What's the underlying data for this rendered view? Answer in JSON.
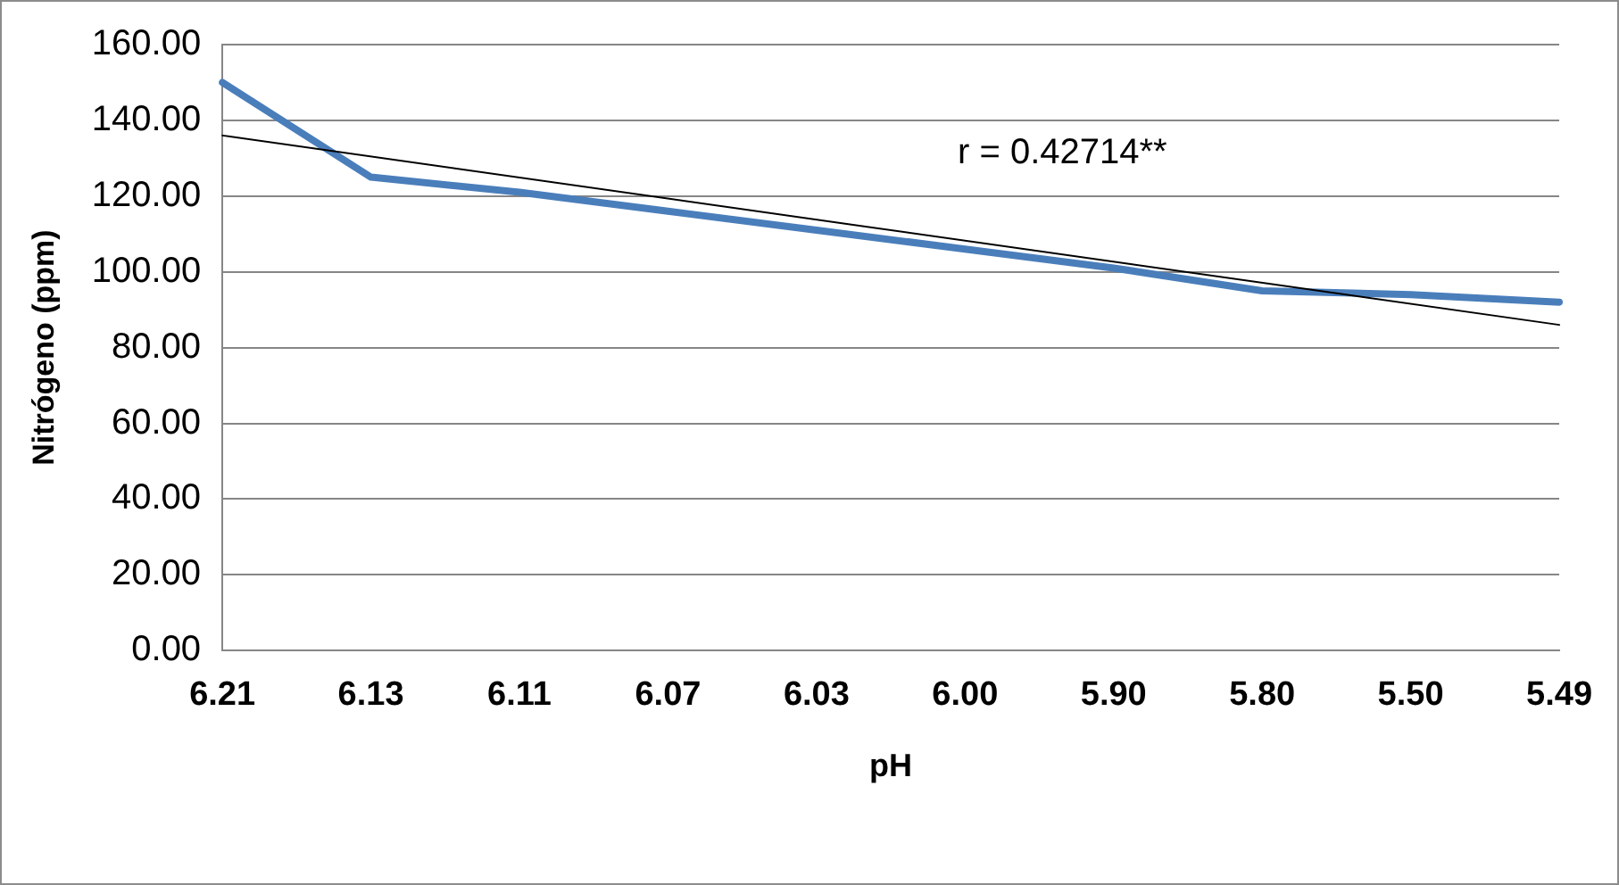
{
  "chart_data": {
    "type": "line",
    "xlabel": "pH",
    "ylabel": "Nitrógeno (ppm)",
    "categories": [
      "6.21",
      "6.13",
      "6.11",
      "6.07",
      "6.03",
      "6.00",
      "5.90",
      "5.80",
      "5.50",
      "5.49"
    ],
    "series": [
      {
        "color": "#4a7ebb",
        "values": [
          150,
          125,
          121,
          116,
          111,
          106,
          101,
          95,
          94,
          92
        ]
      },
      {
        "type": "line",
        "color": "#000000",
        "x": [
          "6.21",
          "5.49"
        ],
        "values": [
          136,
          86
        ]
      }
    ],
    "ylim": [
      0,
      160
    ],
    "yticks": [
      {
        "value": 0,
        "label": "0.00"
      },
      {
        "value": 20,
        "label": "20.00"
      },
      {
        "value": 40,
        "label": "40.00"
      },
      {
        "value": 60,
        "label": "60.00"
      },
      {
        "value": 80,
        "label": "80.00"
      },
      {
        "value": 100,
        "label": "100.00"
      },
      {
        "value": 120,
        "label": "120.00"
      },
      {
        "value": 140,
        "label": "140.00"
      },
      {
        "value": 160,
        "label": "160.00"
      }
    ],
    "grid": "y",
    "legend": false,
    "marker": "none",
    "line_style": "solid",
    "annotations": [
      "r = 0.42714**"
    ]
  }
}
